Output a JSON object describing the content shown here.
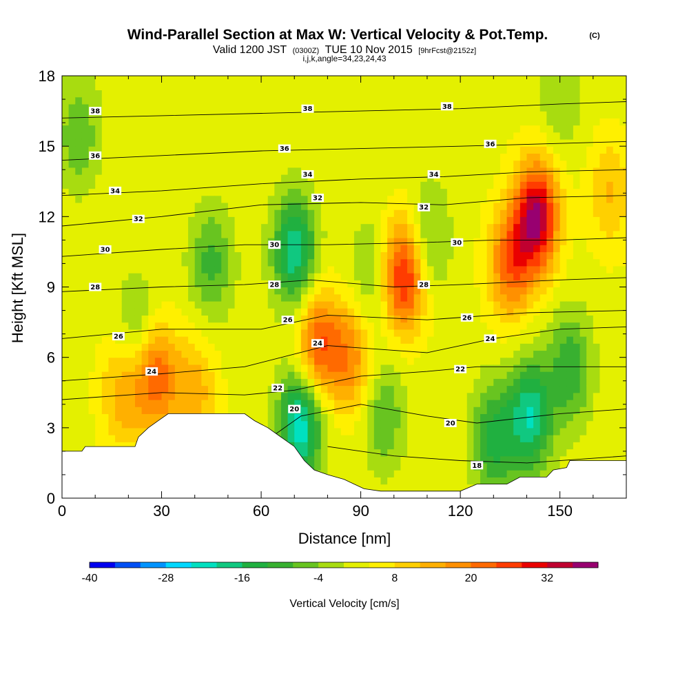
{
  "header": {
    "title": "Wind-Parallel Section at Max W: Vertical Velocity & Pot.Temp.",
    "title_mark": "(C)",
    "subtitle_a": "Valid 1200 JST",
    "subtitle_b": "(0300Z)",
    "subtitle_c": "TUE 10 Nov 2015",
    "subtitle_d": "[9hrFcst@2152z]",
    "subtitle2": "i,j,k,angle=34,23,24,43"
  },
  "colorbar": {
    "label": "Vertical Velocity [cm/s]",
    "tick_labels": [
      "-40",
      "-28",
      "-16",
      "-4",
      "8",
      "20",
      "32"
    ],
    "levels_cm_s": [
      -40,
      -36,
      -32,
      -28,
      -24,
      -20,
      -16,
      -12,
      -8,
      -4,
      0,
      4,
      8,
      12,
      16,
      20,
      24,
      28,
      32,
      36,
      40
    ],
    "colors": [
      "#0000f0",
      "#0050f5",
      "#0094ff",
      "#00d8ff",
      "#00e0c0",
      "#10c880",
      "#20b040",
      "#38b030",
      "#68c420",
      "#a8dc10",
      "#e4f000",
      "#fff000",
      "#ffd000",
      "#ffb000",
      "#ff9000",
      "#ff6a00",
      "#ff3c00",
      "#ea0000",
      "#c00030",
      "#980070"
    ]
  },
  "chart_data": {
    "type": "heatmap",
    "title": "Wind-Parallel Section at Max W: Vertical Velocity & Pot.Temp.",
    "xlabel": "Distance [nm]",
    "ylabel": "Height [Kft MSL]",
    "xlim": [
      0,
      170
    ],
    "ylim": [
      0,
      18
    ],
    "x_ticks": [
      0,
      30,
      60,
      90,
      120,
      150
    ],
    "y_ticks": [
      0,
      3,
      6,
      9,
      12,
      15,
      18
    ],
    "x_tick_labels": [
      "0",
      "30",
      "60",
      "90",
      "120",
      "150"
    ],
    "y_tick_labels": [
      "0",
      "3",
      "6",
      "9",
      "12",
      "15",
      "18"
    ],
    "field": "Vertical Velocity [cm/s] (filled) with potential temperature contours",
    "terrain_kft": [
      [
        0,
        2.0
      ],
      [
        6,
        2.0
      ],
      [
        7,
        2.2
      ],
      [
        22,
        2.2
      ],
      [
        23,
        2.6
      ],
      [
        26,
        3.0
      ],
      [
        29,
        3.3
      ],
      [
        32,
        3.6
      ],
      [
        55,
        3.6
      ],
      [
        58,
        3.3
      ],
      [
        62,
        3.0
      ],
      [
        66,
        2.6
      ],
      [
        70,
        2.2
      ],
      [
        73,
        1.6
      ],
      [
        76,
        1.2
      ],
      [
        80,
        1.0
      ],
      [
        85,
        0.8
      ],
      [
        88,
        0.6
      ],
      [
        91,
        0.4
      ],
      [
        96,
        0.3
      ],
      [
        110,
        0.3
      ],
      [
        117,
        0.3
      ],
      [
        120,
        0.3
      ],
      [
        125,
        0.6
      ],
      [
        134,
        0.6
      ],
      [
        138,
        0.9
      ],
      [
        146,
        0.9
      ],
      [
        148,
        1.2
      ],
      [
        152,
        1.3
      ],
      [
        153,
        1.6
      ],
      [
        170,
        1.6
      ]
    ],
    "vertical_velocity_features": [
      {
        "x": 28,
        "y": 5.2,
        "w": 22
      },
      {
        "x": 18,
        "y": 4.5,
        "w": 12
      },
      {
        "x": 40,
        "y": 4.5,
        "w": 12
      },
      {
        "x": 23,
        "y": 7.0,
        "w": -10
      },
      {
        "x": 5,
        "y": 15.5,
        "w": -10
      },
      {
        "x": 45,
        "y": 10.0,
        "w": -12
      },
      {
        "x": 70,
        "y": 10.5,
        "w": -22
      },
      {
        "x": 72,
        "y": 3.2,
        "w": -26
      },
      {
        "x": 77,
        "y": 6.5,
        "w": 22
      },
      {
        "x": 87,
        "y": 6.0,
        "w": 16
      },
      {
        "x": 103,
        "y": 9.5,
        "w": 28
      },
      {
        "x": 93,
        "y": 9.5,
        "w": -8
      },
      {
        "x": 110,
        "y": 11.0,
        "w": -10
      },
      {
        "x": 97,
        "y": 3.5,
        "w": -10
      },
      {
        "x": 130,
        "y": 2.5,
        "w": -16
      },
      {
        "x": 141,
        "y": 3.5,
        "w": -22
      },
      {
        "x": 143,
        "y": 12.0,
        "w": 34
      },
      {
        "x": 135,
        "y": 10.0,
        "w": 20
      },
      {
        "x": 153,
        "y": 5.5,
        "w": -14
      },
      {
        "x": 150,
        "y": 17.0,
        "w": -6
      },
      {
        "x": 165,
        "y": 13.0,
        "w": 10
      }
    ],
    "theta_contours": [
      {
        "label": "18",
        "points": [
          [
            80,
            2.2
          ],
          [
            100,
            1.8
          ],
          [
            120,
            1.6
          ],
          [
            140,
            1.5
          ],
          [
            170,
            1.8
          ]
        ],
        "label_at": [
          125,
          1.4
        ]
      },
      {
        "label": "20",
        "points": [
          [
            63,
            2.6
          ],
          [
            72,
            3.5
          ],
          [
            90,
            4.0
          ],
          [
            110,
            3.5
          ],
          [
            125,
            3.2
          ],
          [
            150,
            3.6
          ],
          [
            170,
            3.8
          ]
        ],
        "label_at": [
          70,
          3.8
        ]
      },
      {
        "label": "22",
        "points": [
          [
            0,
            4.2
          ],
          [
            30,
            4.5
          ],
          [
            55,
            4.4
          ],
          [
            70,
            4.6
          ],
          [
            90,
            5.2
          ],
          [
            110,
            5.4
          ],
          [
            125,
            5.6
          ],
          [
            150,
            5.6
          ],
          [
            170,
            5.6
          ]
        ],
        "label_at": [
          65,
          4.7
        ]
      },
      {
        "label": "24",
        "points": [
          [
            0,
            5.0
          ],
          [
            30,
            5.3
          ],
          [
            55,
            5.6
          ],
          [
            80,
            6.5
          ],
          [
            110,
            6.2
          ],
          [
            130,
            6.8
          ],
          [
            150,
            7.2
          ],
          [
            170,
            7.3
          ]
        ],
        "label_at": [
          27,
          5.4
        ]
      },
      {
        "label": "26",
        "points": [
          [
            0,
            6.8
          ],
          [
            30,
            7.2
          ],
          [
            60,
            7.2
          ],
          [
            80,
            7.8
          ],
          [
            110,
            7.6
          ],
          [
            140,
            7.9
          ],
          [
            170,
            8.0
          ]
        ],
        "label_at": [
          17,
          6.9
        ]
      },
      {
        "label": "28",
        "points": [
          [
            0,
            8.8
          ],
          [
            30,
            9.0
          ],
          [
            55,
            9.1
          ],
          [
            75,
            9.3
          ],
          [
            100,
            9.0
          ],
          [
            120,
            9.1
          ],
          [
            150,
            9.3
          ],
          [
            170,
            9.4
          ]
        ],
        "label_at": [
          10,
          9.0
        ]
      },
      {
        "label": "30",
        "points": [
          [
            0,
            10.3
          ],
          [
            30,
            10.6
          ],
          [
            55,
            10.8
          ],
          [
            80,
            10.8
          ],
          [
            110,
            10.9
          ],
          [
            130,
            11.0
          ],
          [
            150,
            11.0
          ],
          [
            170,
            11.1
          ]
        ],
        "label_at": [
          13,
          10.6
        ]
      },
      {
        "label": "32",
        "points": [
          [
            0,
            11.6
          ],
          [
            30,
            12.0
          ],
          [
            60,
            12.5
          ],
          [
            90,
            12.6
          ],
          [
            115,
            12.5
          ],
          [
            140,
            12.8
          ],
          [
            170,
            12.9
          ]
        ],
        "label_at": [
          23,
          11.9
        ]
      },
      {
        "label": "34",
        "points": [
          [
            0,
            12.9
          ],
          [
            30,
            13.1
          ],
          [
            60,
            13.4
          ],
          [
            90,
            13.6
          ],
          [
            115,
            13.7
          ],
          [
            140,
            13.9
          ],
          [
            170,
            14.0
          ]
        ],
        "label_at": [
          16,
          13.1
        ]
      },
      {
        "label": "36",
        "points": [
          [
            0,
            14.4
          ],
          [
            30,
            14.6
          ],
          [
            60,
            14.8
          ],
          [
            90,
            14.9
          ],
          [
            120,
            15.0
          ],
          [
            145,
            15.1
          ],
          [
            170,
            15.2
          ]
        ],
        "label_at": [
          10,
          14.6
        ]
      },
      {
        "label": "38",
        "points": [
          [
            0,
            16.2
          ],
          [
            30,
            16.3
          ],
          [
            60,
            16.4
          ],
          [
            90,
            16.5
          ],
          [
            120,
            16.6
          ],
          [
            150,
            16.8
          ],
          [
            170,
            16.9
          ]
        ],
        "label_at": [
          10,
          16.5
        ]
      }
    ],
    "extra_theta_labels": [
      {
        "label": "38",
        "at": [
          74,
          16.6
        ]
      },
      {
        "label": "38",
        "at": [
          116,
          16.7
        ]
      },
      {
        "label": "36",
        "at": [
          67,
          14.9
        ]
      },
      {
        "label": "36",
        "at": [
          129,
          15.1
        ]
      },
      {
        "label": "34",
        "at": [
          74,
          13.8
        ]
      },
      {
        "label": "34",
        "at": [
          112,
          13.8
        ]
      },
      {
        "label": "32",
        "at": [
          77,
          12.8
        ]
      },
      {
        "label": "32",
        "at": [
          109,
          12.4
        ]
      },
      {
        "label": "30",
        "at": [
          64,
          10.8
        ]
      },
      {
        "label": "30",
        "at": [
          119,
          10.9
        ]
      },
      {
        "label": "28",
        "at": [
          64,
          9.1
        ]
      },
      {
        "label": "28",
        "at": [
          109,
          9.1
        ]
      },
      {
        "label": "26",
        "at": [
          68,
          7.6
        ]
      },
      {
        "label": "26",
        "at": [
          122,
          7.7
        ]
      },
      {
        "label": "24",
        "at": [
          77,
          6.6
        ]
      },
      {
        "label": "24",
        "at": [
          129,
          6.8
        ]
      },
      {
        "label": "22",
        "at": [
          120,
          5.5
        ]
      },
      {
        "label": "20",
        "at": [
          117,
          3.2
        ]
      }
    ]
  }
}
